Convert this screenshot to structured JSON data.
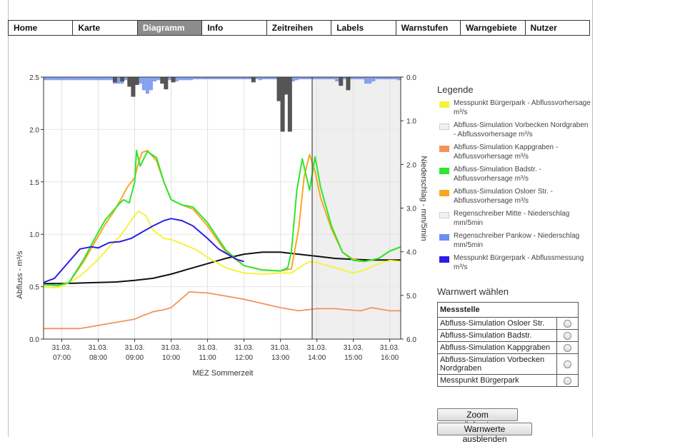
{
  "nav": {
    "tabs": [
      {
        "label": "Home",
        "active": false
      },
      {
        "label": "Karte",
        "active": false
      },
      {
        "label": "Diagramm",
        "active": true
      },
      {
        "label": "Info",
        "active": false
      },
      {
        "label": "Zeitreihen",
        "active": false
      },
      {
        "label": "Labels",
        "active": false
      },
      {
        "label": "Warnstufen",
        "active": false
      },
      {
        "label": "Warngebiete",
        "active": false
      },
      {
        "label": "Nutzer",
        "active": false
      }
    ]
  },
  "legend": {
    "title": "Legende",
    "items": [
      {
        "label": "Messpunkt Bürgerpark - Abflussvorhersage m³/s",
        "color": "#f4f43c",
        "icon": "line-swatch"
      },
      {
        "label": "Abfluss-Simulation Vorbecken Nordgraben - Abflussvorhersage m³/s",
        "color": "#f2f2f2",
        "icon": "line-swatch"
      },
      {
        "label": "Abfluss-Simulation Kappgraben - Abflussvorhersage m³/s",
        "color": "#f4925a",
        "icon": "line-swatch"
      },
      {
        "label": "Abfluss-Simulation Badstr. - Abflussvorhersage m³/s",
        "color": "#2ee62e",
        "icon": "line-swatch"
      },
      {
        "label": "Abfluss-Simulation Osloer Str. - Abflussvorhersage m³/s",
        "color": "#f7a81e",
        "icon": "line-swatch"
      },
      {
        "label": "Regenschreiber Mitte - Niederschlag mm/5min",
        "color": "#f2f2f2",
        "icon": "bar-swatch"
      },
      {
        "label": "Regenschreiber Pankow - Niederschlag mm/5min",
        "color": "#6b8ef2",
        "icon": "bar-swatch"
      },
      {
        "label": "Messpunkt Bürgerpark - Abflussmessung m³/s",
        "color": "#2a1ee6",
        "icon": "line-swatch"
      }
    ]
  },
  "warn": {
    "title": "Warnwert wählen",
    "header": "Messstelle",
    "rows": [
      "Abfluss-Simulation Osloer Str.",
      "Abfluss-Simulation Badstr.",
      "Abfluss-Simulation Kappgraben",
      "Abfluss-Simulation Vorbecken Nordgraben",
      "Messpunkt Bürgerpark"
    ]
  },
  "buttons": {
    "zoom_reset": "Zoom zurücksetzen",
    "hide_warn": "Warnwerte ausblenden"
  },
  "chart_data": {
    "type": "line",
    "xlabel": "MEZ Sommerzeit",
    "ylabel_left": "Abfluss - m³/s",
    "ylabel_right": "Niederschlag - mm/5min",
    "xlim": [
      6.5,
      16.3
    ],
    "ylim_left": [
      0,
      2.5
    ],
    "ylim_right": [
      6,
      0
    ],
    "right_axis_inverted": true,
    "x_ticks": [
      {
        "x": 7,
        "d": "31.03.",
        "t": "07:00"
      },
      {
        "x": 8,
        "d": "31.03.",
        "t": "08:00"
      },
      {
        "x": 9,
        "d": "31.03.",
        "t": "09:00"
      },
      {
        "x": 10,
        "d": "31.03.",
        "t": "10:00"
      },
      {
        "x": 11,
        "d": "31.03.",
        "t": "11:00"
      },
      {
        "x": 12,
        "d": "31.03.",
        "t": "12:00"
      },
      {
        "x": 13,
        "d": "31.03.",
        "t": "13:00"
      },
      {
        "x": 14,
        "d": "31.03.",
        "t": "14:00"
      },
      {
        "x": 15,
        "d": "31.03.",
        "t": "15:00"
      },
      {
        "x": 16,
        "d": "31.03.",
        "t": "16:00"
      }
    ],
    "y_ticks_left": [
      {
        "v": 0,
        "l": "0.0"
      },
      {
        "v": 0.5,
        "l": "0.5"
      },
      {
        "v": 1,
        "l": "1.0"
      },
      {
        "v": 1.5,
        "l": "1.5"
      },
      {
        "v": 2,
        "l": "2.0"
      },
      {
        "v": 2.5,
        "l": "2.5"
      }
    ],
    "y_ticks_right": [
      {
        "v": 0,
        "l": "0.0"
      },
      {
        "v": 1,
        "l": "1.0"
      },
      {
        "v": 2,
        "l": "2.0"
      },
      {
        "v": 3,
        "l": "3.0"
      },
      {
        "v": 4,
        "l": "4.0"
      },
      {
        "v": 5,
        "l": "5.0"
      },
      {
        "v": 6,
        "l": "6.0"
      }
    ],
    "now_line_x": 13.87,
    "forecast_shade_from": 13.87,
    "grid": true,
    "series": [
      {
        "id": "nordgraben",
        "color": "#111111",
        "width": 2,
        "x": [
          6.5,
          7,
          7.5,
          8,
          8.5,
          9,
          9.5,
          10,
          10.5,
          11,
          11.5,
          12,
          12.5,
          13,
          13.5,
          14,
          14.5,
          15,
          15.5,
          16,
          16.3
        ],
        "y": [
          0.53,
          0.53,
          0.535,
          0.54,
          0.545,
          0.56,
          0.58,
          0.62,
          0.67,
          0.72,
          0.77,
          0.81,
          0.83,
          0.83,
          0.81,
          0.79,
          0.77,
          0.76,
          0.755,
          0.755,
          0.755
        ]
      },
      {
        "id": "kappgraben",
        "color": "#f4925a",
        "width": 1.8,
        "x": [
          6.5,
          7,
          7.5,
          8,
          8.5,
          9,
          9.2,
          9.5,
          9.8,
          10,
          10.2,
          10.5,
          11,
          11.5,
          12,
          12.5,
          13,
          13.5,
          14,
          14.5,
          14.8,
          15.2,
          15.5,
          16,
          16.3
        ],
        "y": [
          0.1,
          0.1,
          0.1,
          0.13,
          0.16,
          0.19,
          0.22,
          0.26,
          0.28,
          0.3,
          0.36,
          0.45,
          0.44,
          0.41,
          0.38,
          0.34,
          0.3,
          0.27,
          0.29,
          0.29,
          0.28,
          0.27,
          0.3,
          0.27,
          0.27
        ]
      },
      {
        "id": "buergerpark-forecast",
        "color": "#f4f43c",
        "width": 2,
        "x": [
          6.5,
          6.8,
          7,
          7.5,
          8,
          8.3,
          8.6,
          8.8,
          9.0,
          9.1,
          9.3,
          9.5,
          9.8,
          10,
          10.3,
          10.7,
          11,
          11.5,
          12,
          12.5,
          13,
          13.3,
          13.6,
          13.8,
          14,
          14.3,
          14.7,
          15,
          15.3,
          15.7,
          16,
          16.3
        ],
        "y": [
          0.5,
          0.49,
          0.5,
          0.6,
          0.76,
          0.88,
          0.98,
          1.08,
          1.18,
          1.22,
          1.18,
          1.04,
          0.96,
          0.95,
          0.91,
          0.85,
          0.78,
          0.68,
          0.63,
          0.62,
          0.63,
          0.63,
          0.7,
          0.74,
          0.73,
          0.7,
          0.66,
          0.63,
          0.66,
          0.72,
          0.75,
          0.74
        ]
      },
      {
        "id": "osloer",
        "color": "#f7a81e",
        "width": 2,
        "x": [
          6.5,
          6.9,
          7.2,
          7.6,
          8,
          8.2,
          8.4,
          8.6,
          8.8,
          9,
          9.1,
          9.2,
          9.35,
          9.6,
          9.8,
          10,
          10.3,
          10.6,
          11,
          11.5,
          12,
          12.5,
          13,
          13.3,
          13.5,
          13.65,
          13.8,
          13.95,
          14.1,
          14.4,
          14.7,
          15,
          15.3,
          15.7,
          16,
          16.3
        ],
        "y": [
          0.52,
          0.51,
          0.54,
          0.74,
          0.98,
          1.1,
          1.2,
          1.32,
          1.45,
          1.54,
          1.68,
          1.78,
          1.8,
          1.7,
          1.5,
          1.33,
          1.28,
          1.24,
          1.08,
          0.83,
          0.7,
          0.66,
          0.65,
          0.67,
          1.05,
          1.55,
          1.76,
          1.6,
          1.35,
          1.05,
          0.83,
          0.76,
          0.74,
          0.77,
          0.84,
          0.88
        ]
      },
      {
        "id": "badstr",
        "color": "#2ee62e",
        "width": 2,
        "x": [
          6.5,
          6.9,
          7.2,
          7.6,
          8,
          8.2,
          8.4,
          8.6,
          8.7,
          8.85,
          9.0,
          9.05,
          9.15,
          9.25,
          9.35,
          9.6,
          9.8,
          10,
          10.3,
          10.6,
          11,
          11.5,
          12,
          12.5,
          13,
          13.2,
          13.3,
          13.45,
          13.6,
          13.8,
          13.95,
          14.1,
          14.4,
          14.7,
          15,
          15.3,
          15.7,
          16,
          16.3
        ],
        "y": [
          0.52,
          0.51,
          0.54,
          0.76,
          1.02,
          1.14,
          1.22,
          1.3,
          1.33,
          1.3,
          1.5,
          1.8,
          1.65,
          1.72,
          1.79,
          1.73,
          1.5,
          1.33,
          1.28,
          1.26,
          1.11,
          0.85,
          0.7,
          0.66,
          0.65,
          0.68,
          0.83,
          1.42,
          1.72,
          1.42,
          1.74,
          1.45,
          1.08,
          0.83,
          0.75,
          0.74,
          0.77,
          0.84,
          0.88
        ]
      },
      {
        "id": "buergerpark-measured",
        "color": "#2a1ee6",
        "width": 2,
        "x": [
          6.5,
          6.8,
          7,
          7.2,
          7.5,
          7.8,
          8,
          8.3,
          8.6,
          8.9,
          9.2,
          9.5,
          9.8,
          10,
          10.3,
          10.6,
          11,
          11.3,
          11.6,
          11.8,
          12.0
        ],
        "y": [
          0.54,
          0.58,
          0.66,
          0.74,
          0.86,
          0.88,
          0.87,
          0.92,
          0.93,
          0.96,
          1.02,
          1.08,
          1.13,
          1.15,
          1.13,
          1.08,
          0.96,
          0.86,
          0.8,
          0.76,
          0.74
        ]
      }
    ],
    "rain_pankow": {
      "color": "#7290ef",
      "x": [
        6.5,
        6.6,
        6.7,
        6.8,
        6.9,
        7.0,
        7.1,
        7.2,
        7.3,
        7.4,
        7.5,
        7.6,
        7.7,
        7.8,
        7.9,
        8.0,
        8.1,
        8.2,
        8.3,
        8.4,
        8.5,
        8.6,
        8.7,
        8.8,
        8.9,
        9.0,
        9.1,
        9.2,
        9.3,
        9.4,
        9.5,
        9.6,
        9.7,
        9.8,
        9.9,
        10.0,
        10.1,
        10.2,
        10.3,
        10.4,
        10.5,
        10.6,
        10.7,
        10.8,
        10.9,
        11.0,
        11.1,
        11.2,
        11.3,
        11.4,
        11.5,
        11.6,
        11.7,
        11.8,
        11.9,
        12.0,
        12.1,
        12.2,
        12.3,
        12.4,
        12.5,
        12.6,
        12.7,
        12.8,
        12.9,
        13.0,
        13.1,
        13.2,
        13.3,
        13.4,
        13.5,
        13.6,
        13.7,
        13.8,
        13.9,
        14.0,
        14.1,
        14.2,
        14.3,
        14.4,
        14.5,
        14.6,
        14.7,
        14.8,
        14.9,
        15.0,
        15.1,
        15.2,
        15.3,
        15.4,
        15.5,
        15.6,
        15.7,
        15.8,
        15.9,
        16.0,
        16.1,
        16.2
      ],
      "v": [
        0.07,
        0.07,
        0.07,
        0.07,
        0.07,
        0.07,
        0.07,
        0.07,
        0.07,
        0.07,
        0.07,
        0.07,
        0.07,
        0.07,
        0.07,
        0.07,
        0.07,
        0.07,
        0.07,
        0.15,
        0.15,
        0.15,
        0.07,
        0.15,
        0.22,
        0.15,
        0.15,
        0.3,
        0.38,
        0.3,
        0.1,
        0.07,
        0.07,
        0.07,
        0.07,
        0.1,
        0.1,
        0.07,
        0.07,
        0.07,
        0.07,
        0.05,
        0.05,
        0.05,
        0.05,
        0.05,
        0.05,
        0.05,
        0.05,
        0.05,
        0.05,
        0.05,
        0.05,
        0.05,
        0.05,
        0.05,
        0.05,
        0.05,
        0.05,
        0.07,
        0.05,
        0.05,
        0.05,
        0.05,
        0.05,
        0.05,
        0.05,
        0.05,
        0.1,
        0.07,
        0.05,
        0.05,
        0.05,
        0.05,
        0.05,
        0.05,
        0.05,
        0.05,
        0.05,
        0.05,
        0.1,
        0.1,
        0.05,
        0.05,
        0.05,
        0.05,
        0.05,
        0.05,
        0.15,
        0.15,
        0.1,
        0.05,
        0.05,
        0.05,
        0.05,
        0.05,
        0.05,
        0.07
      ]
    },
    "rain_mitte": {
      "color": "#555555",
      "x": [
        8.4,
        8.6,
        8.8,
        8.9,
        9.0,
        9.7,
        9.8,
        10.0,
        12.2,
        12.9,
        13.0,
        13.1,
        13.2,
        14.6,
        14.8
      ],
      "v": [
        0.12,
        0.1,
        0.22,
        0.45,
        0.18,
        0.15,
        0.28,
        0.12,
        0.12,
        0.55,
        1.25,
        0.4,
        1.25,
        0.2,
        0.3
      ]
    }
  }
}
